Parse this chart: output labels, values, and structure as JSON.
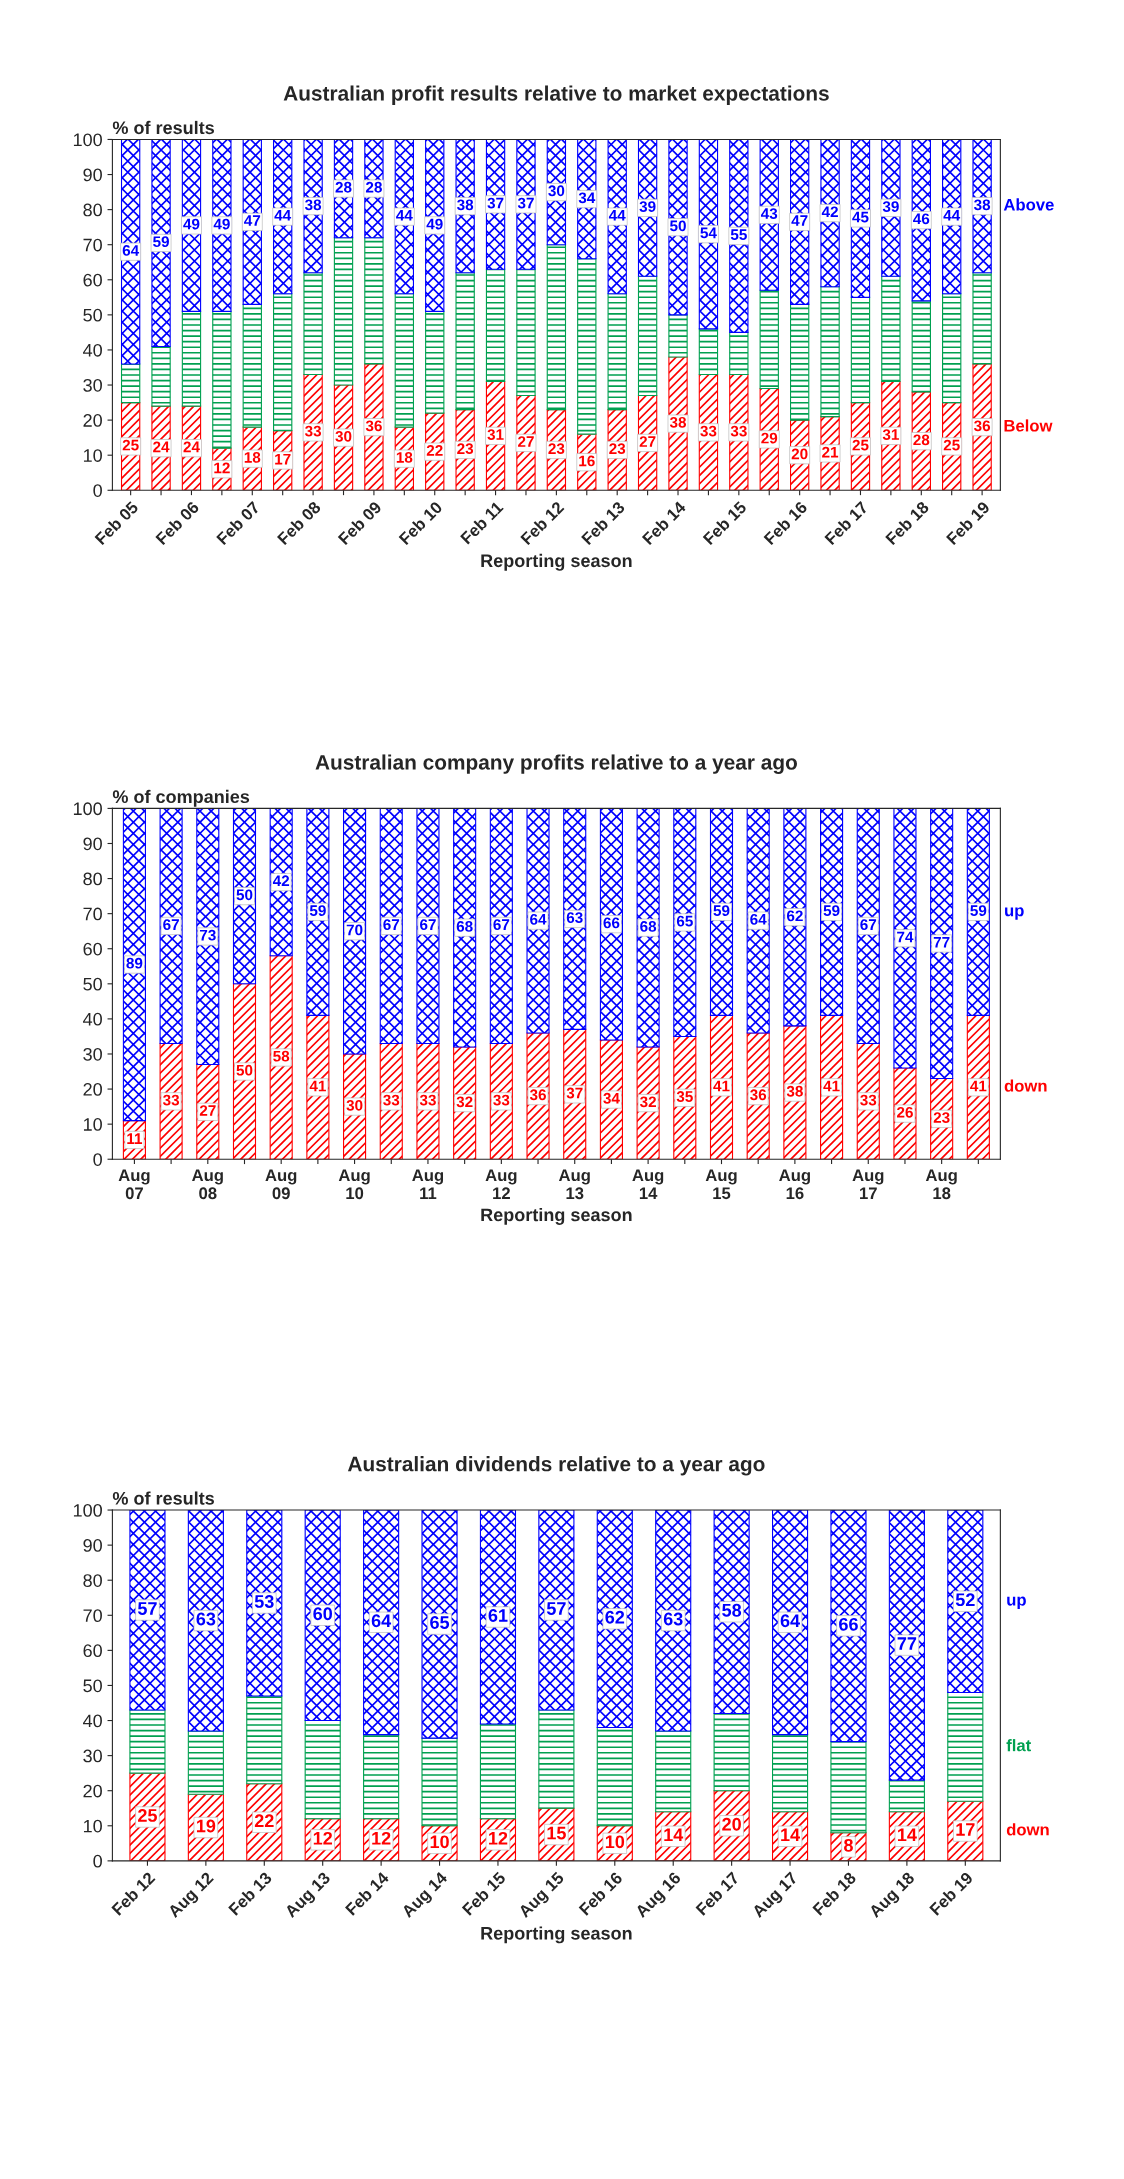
{
  "chart_data": [
    {
      "type": "bar",
      "stacked": true,
      "title": "Australian profit results relative to market expectations",
      "ylabel": "% of results",
      "xlabel": "Reporting season",
      "categories": [
        "Feb 05",
        null,
        "Feb 06",
        null,
        "Feb 07",
        null,
        "Feb 08",
        null,
        "Feb 09",
        null,
        "Feb 10",
        null,
        "Feb 11",
        null,
        "Feb 12",
        null,
        "Feb 13",
        null,
        "Feb 14",
        null,
        "Feb 15",
        null,
        "Feb 16",
        null,
        "Feb 17",
        null,
        "Feb 18",
        null,
        "Feb 19"
      ],
      "series": [
        {
          "name": "Below",
          "color": "#ff0000",
          "values": [
            25,
            24,
            24,
            12,
            18,
            17,
            33,
            30,
            36,
            18,
            22,
            23,
            31,
            27,
            23,
            16,
            23,
            27,
            38,
            33,
            33,
            29,
            20,
            21,
            25,
            31,
            28,
            25,
            36
          ],
          "value_labels": [
            "25",
            "24",
            "24",
            "12",
            "18",
            "17",
            "33",
            "30",
            "36",
            "18",
            "22",
            "23",
            "31",
            "27",
            "23",
            "16",
            "23",
            "27",
            "38",
            "33",
            "33",
            "29",
            "20",
            "21",
            "25",
            "31",
            "28",
            "25",
            "36"
          ]
        },
        {
          "color": "#00a050",
          "values": [
            11,
            17,
            27,
            39,
            35,
            39,
            29,
            42,
            36,
            38,
            29,
            39,
            32,
            36,
            47,
            50,
            33,
            34,
            12,
            13,
            12,
            28,
            33,
            37,
            30,
            30,
            26,
            31,
            26
          ]
        },
        {
          "name": "Above",
          "color": "#0000ff",
          "values": [
            64,
            59,
            49,
            49,
            47,
            44,
            38,
            28,
            28,
            44,
            49,
            38,
            37,
            37,
            30,
            34,
            44,
            39,
            50,
            54,
            55,
            43,
            47,
            42,
            45,
            39,
            46,
            44,
            38
          ],
          "value_labels": [
            "64",
            "59",
            "49",
            "49",
            "47",
            "44",
            "38",
            "28",
            "28",
            "44",
            "49",
            "38",
            "37",
            "37",
            "30",
            "34",
            "44",
            "39",
            "50",
            "54",
            "55",
            "43",
            "47",
            "42",
            "45",
            "39",
            "46",
            "44",
            "38"
          ]
        }
      ],
      "ylim": [
        0,
        100
      ],
      "yticks": [
        0,
        10,
        20,
        30,
        40,
        50,
        60,
        70,
        80,
        90,
        100
      ]
    },
    {
      "type": "bar",
      "stacked": true,
      "title": "Australian company profits relative to a year ago",
      "ylabel": "% of companies",
      "xlabel": "Reporting season",
      "categories": [
        "Aug\n07",
        null,
        "Aug\n08",
        null,
        "Aug\n09",
        null,
        "Aug\n10",
        null,
        "Aug\n11",
        null,
        "Aug\n12",
        null,
        "Aug\n13",
        null,
        "Aug\n14",
        null,
        "Aug\n15",
        null,
        "Aug\n16",
        null,
        "Aug\n17",
        null,
        "Aug\n18",
        null
      ],
      "series": [
        {
          "name": "down",
          "color": "#ff0000",
          "values": [
            11,
            33,
            27,
            50,
            58,
            41,
            30,
            33,
            33,
            32,
            33,
            36,
            37,
            34,
            32,
            35,
            41,
            36,
            38,
            41,
            33,
            26,
            23,
            41
          ],
          "value_labels": [
            "11",
            "33",
            "27",
            "50",
            "58",
            "41",
            "30",
            "33",
            "33",
            "32",
            "33",
            "36",
            "37",
            "34",
            "32",
            "35",
            "41",
            "36",
            "38",
            "41",
            "33",
            "26",
            "23",
            "41"
          ]
        },
        {
          "name": "up",
          "color": "#0000ff",
          "values": [
            89,
            67,
            73,
            50,
            42,
            59,
            70,
            67,
            67,
            68,
            67,
            64,
            63,
            66,
            68,
            65,
            59,
            64,
            62,
            59,
            67,
            74,
            77,
            59
          ],
          "value_labels": [
            "89",
            "67",
            "73",
            "50",
            "42",
            "59",
            "70",
            "67",
            "67",
            "68",
            "67",
            "64",
            "63",
            "66",
            "68",
            "65",
            "59",
            "64",
            "62",
            "59",
            "67",
            "74",
            "77",
            "59"
          ]
        }
      ],
      "ylim": [
        0,
        100
      ],
      "yticks": [
        0,
        10,
        20,
        30,
        40,
        50,
        60,
        70,
        80,
        90,
        100
      ]
    },
    {
      "type": "bar",
      "stacked": true,
      "title": "Australian dividends relative to a year ago",
      "ylabel": "% of results",
      "xlabel": "Reporting season",
      "categories": [
        "Feb 12",
        "Aug 12",
        "Feb 13",
        "Aug 13",
        "Feb 14",
        "Aug 14",
        "Feb 15",
        "Aug 15",
        "Feb 16",
        "Aug 16",
        "Feb 17",
        "Aug 17",
        "Feb 18",
        "Aug 18",
        "Feb 19"
      ],
      "series": [
        {
          "name": "down",
          "color": "#ff0000",
          "values": [
            25,
            19,
            22,
            12,
            12,
            10,
            12,
            15,
            10,
            14,
            20,
            14,
            8,
            14,
            17
          ],
          "value_labels": [
            "25",
            "19",
            "22",
            "12",
            "12",
            "10",
            "12",
            "15",
            "10",
            "14",
            "20",
            "14",
            "8",
            "14",
            "17"
          ]
        },
        {
          "name": "flat",
          "color": "#00a050",
          "values": [
            18,
            18,
            25,
            28,
            24,
            25,
            27,
            28,
            28,
            23,
            22,
            22,
            26,
            9,
            31
          ]
        },
        {
          "name": "up",
          "color": "#0000ff",
          "values": [
            57,
            63,
            53,
            60,
            64,
            65,
            61,
            57,
            62,
            63,
            58,
            64,
            66,
            77,
            52
          ],
          "value_labels": [
            "57",
            "63",
            "53",
            "60",
            "64",
            "65",
            "61",
            "57",
            "62",
            "63",
            "58",
            "64",
            "66",
            "77",
            "52"
          ]
        }
      ],
      "ylim": [
        0,
        100
      ],
      "yticks": [
        0,
        10,
        20,
        30,
        40,
        50,
        60,
        70,
        80,
        90,
        100
      ]
    }
  ]
}
